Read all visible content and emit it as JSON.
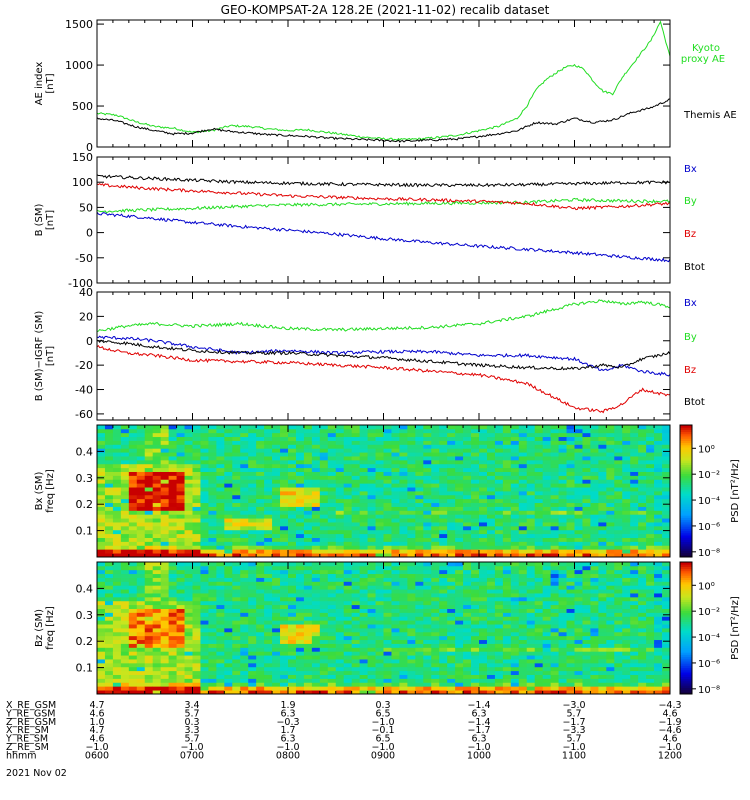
{
  "title": "GEO-KOMPSAT-2A 128.2E (2021-11-02) recalib dataset",
  "colors": {
    "black": "#000000",
    "red": "#e00000",
    "green": "#22dd22",
    "blue": "#0000cc"
  },
  "chart_data": [
    {
      "type": "line",
      "panel": "ae",
      "ylabel_lines": [
        "AE index",
        "[nT]"
      ],
      "ylim": [
        0,
        1550
      ],
      "yticks": [
        0,
        500,
        1000,
        1500
      ],
      "xlim": [
        6,
        12
      ],
      "legend": [
        "Kyoto",
        "proxy AE",
        "Themis AE"
      ],
      "series": [
        {
          "name": "Kyoto proxy AE",
          "color": "#22dd22",
          "x": [
            6.0,
            6.2,
            6.4,
            6.6,
            6.8,
            7.0,
            7.2,
            7.4,
            7.6,
            7.8,
            8.0,
            8.2,
            8.4,
            8.6,
            8.8,
            9.0,
            9.2,
            9.4,
            9.6,
            9.8,
            10.0,
            10.2,
            10.4,
            10.5,
            10.6,
            10.7,
            10.8,
            10.9,
            11.0,
            11.1,
            11.2,
            11.3,
            11.4,
            11.5,
            11.6,
            11.7,
            11.8,
            11.9,
            12.0
          ],
          "values": [
            410,
            390,
            310,
            250,
            230,
            180,
            200,
            260,
            250,
            220,
            200,
            210,
            180,
            150,
            120,
            100,
            90,
            100,
            120,
            150,
            200,
            250,
            350,
            500,
            700,
            820,
            900,
            970,
            1000,
            950,
            800,
            680,
            650,
            850,
            1000,
            1150,
            1300,
            1530,
            1100
          ]
        },
        {
          "name": "Themis AE",
          "color": "#000000",
          "x": [
            6.0,
            6.2,
            6.4,
            6.6,
            6.8,
            7.0,
            7.2,
            7.4,
            7.6,
            7.8,
            8.0,
            8.2,
            8.4,
            8.6,
            8.8,
            9.0,
            9.2,
            9.4,
            9.6,
            9.8,
            10.0,
            10.2,
            10.4,
            10.6,
            10.8,
            11.0,
            11.2,
            11.4,
            11.6,
            11.8,
            12.0
          ],
          "values": [
            350,
            320,
            250,
            200,
            160,
            170,
            220,
            190,
            170,
            150,
            140,
            130,
            110,
            100,
            90,
            80,
            70,
            80,
            90,
            100,
            130,
            160,
            200,
            300,
            280,
            350,
            300,
            330,
            420,
            480,
            580
          ]
        }
      ]
    },
    {
      "type": "line",
      "panel": "b",
      "ylabel_lines": [
        "B (SM)",
        "[nT]"
      ],
      "ylim": [
        -100,
        150
      ],
      "yticks": [
        -100,
        -50,
        0,
        50,
        100,
        150
      ],
      "xlim": [
        6,
        12
      ],
      "legend": [
        "Bx",
        "By",
        "Bz",
        "Btot"
      ],
      "series": [
        {
          "name": "Bx",
          "color": "#0000cc",
          "x": [
            6.0,
            6.5,
            7.0,
            7.5,
            8.0,
            8.5,
            9.0,
            9.5,
            10.0,
            10.5,
            11.0,
            11.5,
            12.0
          ],
          "values": [
            38,
            30,
            20,
            12,
            5,
            -3,
            -12,
            -20,
            -27,
            -33,
            -40,
            -48,
            -55
          ]
        },
        {
          "name": "By",
          "color": "#22dd22",
          "x": [
            6.0,
            6.5,
            7.0,
            7.5,
            8.0,
            8.5,
            9.0,
            9.5,
            10.0,
            10.5,
            11.0,
            11.5,
            12.0
          ],
          "values": [
            42,
            45,
            48,
            52,
            55,
            56,
            57,
            58,
            59,
            60,
            65,
            63,
            62
          ]
        },
        {
          "name": "Bz",
          "color": "#e00000",
          "x": [
            6.0,
            6.5,
            7.0,
            7.5,
            8.0,
            8.5,
            9.0,
            9.5,
            10.0,
            10.5,
            11.0,
            11.5,
            12.0
          ],
          "values": [
            95,
            88,
            83,
            78,
            73,
            70,
            67,
            65,
            62,
            58,
            48,
            52,
            58
          ]
        },
        {
          "name": "Btot",
          "color": "#000000",
          "x": [
            6.0,
            6.5,
            7.0,
            7.5,
            8.0,
            8.5,
            9.0,
            9.5,
            10.0,
            10.5,
            11.0,
            11.5,
            12.0
          ],
          "values": [
            112,
            108,
            104,
            100,
            98,
            96,
            95,
            94,
            94,
            95,
            97,
            99,
            100
          ]
        }
      ]
    },
    {
      "type": "line",
      "panel": "db",
      "ylabel_lines": [
        "B (SM)−IGRF (SM)",
        "[nT]"
      ],
      "ylim": [
        -65,
        40
      ],
      "yticks": [
        -60,
        -40,
        -20,
        0,
        20,
        40
      ],
      "xlim": [
        6,
        12
      ],
      "legend": [
        "Bx",
        "By",
        "Bz",
        "Btot"
      ],
      "series": [
        {
          "name": "Bx",
          "color": "#0000cc",
          "x": [
            6.0,
            6.3,
            6.6,
            7.0,
            7.5,
            8.0,
            8.5,
            9.0,
            9.5,
            10.0,
            10.5,
            11.0,
            11.3,
            11.5,
            11.7,
            12.0
          ],
          "values": [
            3,
            2,
            0,
            -5,
            -10,
            -8,
            -10,
            -9,
            -9,
            -12,
            -12,
            -15,
            -25,
            -20,
            -25,
            -28
          ]
        },
        {
          "name": "By",
          "color": "#22dd22",
          "x": [
            6.0,
            6.3,
            6.6,
            7.0,
            7.5,
            8.0,
            8.5,
            9.0,
            9.5,
            10.0,
            10.5,
            11.0,
            11.3,
            11.5,
            11.7,
            12.0
          ],
          "values": [
            8,
            12,
            14,
            12,
            14,
            10,
            9,
            10,
            11,
            14,
            20,
            30,
            33,
            30,
            32,
            28
          ]
        },
        {
          "name": "Bz",
          "color": "#e00000",
          "x": [
            6.0,
            6.3,
            6.6,
            7.0,
            7.5,
            8.0,
            8.5,
            9.0,
            9.5,
            10.0,
            10.5,
            11.0,
            11.3,
            11.5,
            11.7,
            12.0
          ],
          "values": [
            -5,
            -10,
            -12,
            -16,
            -17,
            -18,
            -20,
            -22,
            -25,
            -28,
            -35,
            -55,
            -58,
            -52,
            -40,
            -45
          ]
        },
        {
          "name": "Btot",
          "color": "#000000",
          "x": [
            6.0,
            6.3,
            6.6,
            7.0,
            7.5,
            8.0,
            8.5,
            9.0,
            9.5,
            10.0,
            10.5,
            11.0,
            11.3,
            11.5,
            11.7,
            12.0
          ],
          "values": [
            0,
            -2,
            -5,
            -8,
            -10,
            -10,
            -12,
            -14,
            -17,
            -20,
            -22,
            -23,
            -20,
            -22,
            -15,
            -10
          ]
        }
      ]
    },
    {
      "type": "heatmap",
      "panel": "spec_bx",
      "ylabel_lines": [
        "Bx (SM)",
        "freq [Hz]"
      ],
      "ylim": [
        0,
        0.5
      ],
      "yticks": [
        0.1,
        0.2,
        0.3,
        0.4
      ],
      "xlim": [
        6,
        12
      ],
      "colorbar_label": "PSD [nT²/Hz]",
      "colorbar_ticks": [
        "10⁰",
        "10⁻²",
        "10⁻⁴",
        "10⁻⁶"
      ],
      "colorbar_exponents": [
        0,
        -2,
        -4,
        -6
      ]
    },
    {
      "type": "heatmap",
      "panel": "spec_bz",
      "ylabel_lines": [
        "Bz (SM)",
        "freq [Hz]"
      ],
      "ylim": [
        0,
        0.5
      ],
      "yticks": [
        0.1,
        0.2,
        0.3,
        0.4
      ],
      "xlim": [
        6,
        12
      ],
      "colorbar_label": "PSD [nT²/Hz]",
      "colorbar_ticks": [
        "10⁰",
        "10⁻²",
        "10⁻⁴",
        "10⁻⁶"
      ],
      "colorbar_exponents": [
        0,
        -2,
        -4,
        -6
      ]
    }
  ],
  "ephemeris": {
    "rows": [
      {
        "label": "X_RE_GSM",
        "values": [
          "4.7",
          "3.4",
          "1.9",
          "0.3",
          "−1.4",
          "−3.0",
          "−4.3"
        ]
      },
      {
        "label": "Y_RE_GSM",
        "values": [
          "4.6",
          "5.7",
          "6.3",
          "6.5",
          "6.3",
          "5.7",
          "4.6"
        ]
      },
      {
        "label": "Z_RE_GSM",
        "values": [
          "1.0",
          "0.3",
          "−0.3",
          "−1.0",
          "−1.4",
          "−1.7",
          "−1.9"
        ]
      },
      {
        "label": "X_RE_SM",
        "values": [
          "4.7",
          "3.3",
          "1.7",
          "−0.1",
          "−1.7",
          "−3.3",
          "−4.6"
        ]
      },
      {
        "label": "Y_RE_SM",
        "values": [
          "4.6",
          "5.7",
          "6.3",
          "6.5",
          "6.3",
          "5.7",
          "4.6"
        ]
      },
      {
        "label": "Z_RE_SM",
        "values": [
          "−1.0",
          "−1.0",
          "−1.0",
          "−1.0",
          "−1.0",
          "−1.0",
          "−1.0"
        ]
      },
      {
        "label": "hhmm",
        "values": [
          "0600",
          "0700",
          "0800",
          "0900",
          "1000",
          "1100",
          "1200"
        ]
      }
    ],
    "date": "2021 Nov 02"
  }
}
